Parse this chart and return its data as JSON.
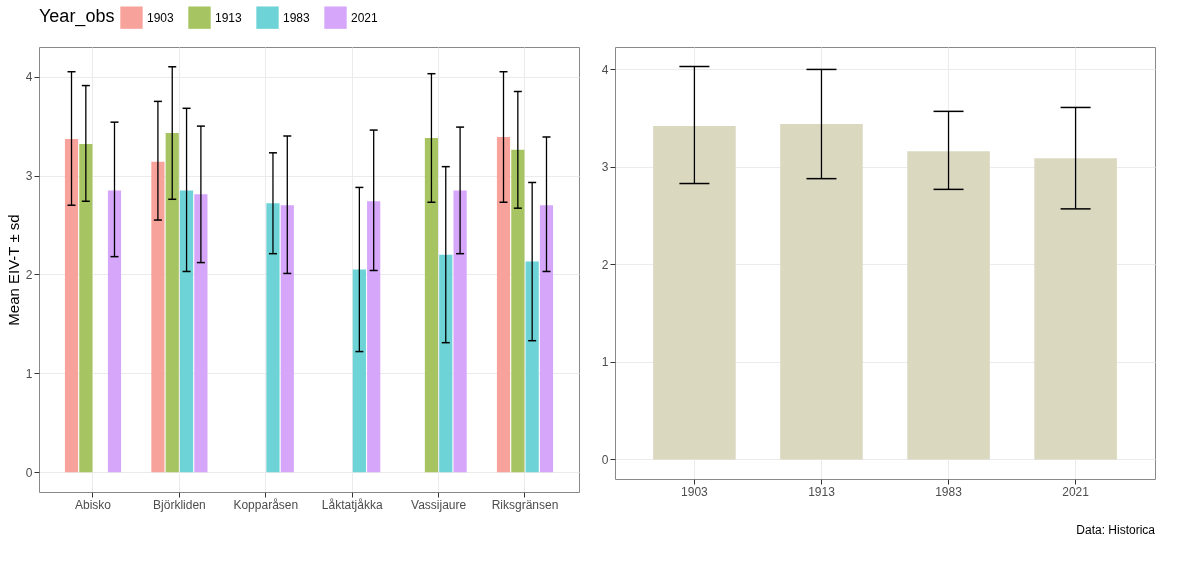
{
  "chart_data": [
    {
      "type": "bar",
      "ylabel": "Mean EIV-T ± sd",
      "legend_title": "Year_obs",
      "legend": "top",
      "grid": true,
      "categories": [
        "Abisko",
        "Björkliden",
        "Kopparåsen",
        "Låktatjåkka",
        "Vassijaure",
        "Riksgränsen"
      ],
      "ylim": [
        -0.2,
        4.3
      ],
      "yticks": [
        0,
        1,
        2,
        3,
        4
      ],
      "series": [
        {
          "name": "1903",
          "color": "#f8a29c",
          "values": [
            3.37,
            3.14,
            null,
            null,
            null,
            3.39
          ],
          "errors": [
            [
              2.7,
              4.05
            ],
            [
              2.55,
              3.75
            ],
            null,
            null,
            null,
            [
              2.73,
              4.05
            ]
          ]
        },
        {
          "name": "1913",
          "color": "#a6c562",
          "values": [
            3.32,
            3.43,
            null,
            null,
            3.38,
            3.26
          ],
          "errors": [
            [
              2.74,
              3.91
            ],
            [
              2.76,
              4.1
            ],
            null,
            null,
            [
              2.73,
              4.03
            ],
            [
              2.67,
              3.85
            ]
          ]
        },
        {
          "name": "1983",
          "color": "#6dd3d6",
          "values": [
            null,
            2.85,
            2.72,
            2.05,
            2.2,
            2.13
          ],
          "errors": [
            null,
            [
              2.03,
              3.68
            ],
            [
              2.21,
              3.23
            ],
            [
              1.22,
              2.88
            ],
            [
              1.31,
              3.09
            ],
            [
              1.33,
              2.93
            ]
          ]
        },
        {
          "name": "2021",
          "color": "#d5a6f9",
          "values": [
            2.85,
            2.81,
            2.7,
            2.74,
            2.85,
            2.7
          ],
          "errors": [
            [
              2.18,
              3.54
            ],
            [
              2.12,
              3.5
            ],
            [
              2.01,
              3.4
            ],
            [
              2.04,
              3.46
            ],
            [
              2.21,
              3.49
            ],
            [
              2.03,
              3.39
            ]
          ]
        }
      ]
    },
    {
      "type": "bar",
      "grid": true,
      "categories": [
        "1903",
        "1913",
        "1983",
        "2021"
      ],
      "ylim": [
        -0.2,
        4.23
      ],
      "yticks": [
        0,
        1,
        2,
        3,
        4
      ],
      "color": "#dbd8c0",
      "values": [
        3.42,
        3.44,
        3.16,
        3.09
      ],
      "errors": [
        [
          2.83,
          4.03
        ],
        [
          2.88,
          4.0
        ],
        [
          2.77,
          3.57
        ],
        [
          2.57,
          3.61
        ]
      ],
      "annotations": [
        "Data: Historica"
      ]
    }
  ]
}
